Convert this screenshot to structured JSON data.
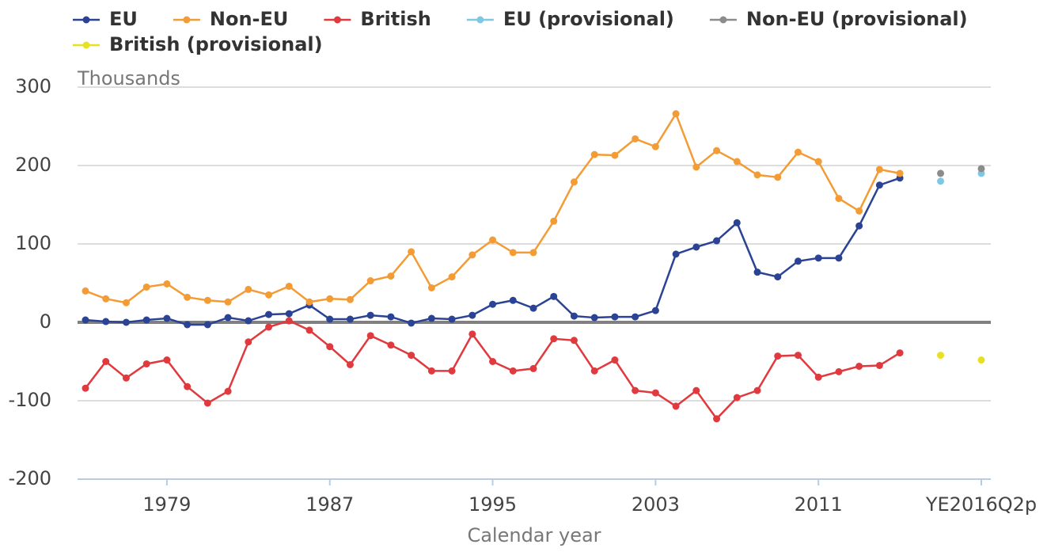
{
  "chart_data": {
    "type": "line",
    "y_label": "Thousands",
    "x_label": "Calendar year",
    "categories": [
      null,
      null,
      null,
      null,
      "1979",
      null,
      null,
      null,
      null,
      null,
      null,
      null,
      "1987",
      null,
      null,
      null,
      null,
      null,
      null,
      null,
      "1995",
      null,
      null,
      null,
      null,
      null,
      null,
      null,
      "2003",
      null,
      null,
      null,
      null,
      null,
      null,
      null,
      "2011",
      null,
      null,
      null,
      null,
      null,
      null,
      null,
      "YE2016Q2p"
    ],
    "series": [
      {
        "name": "EU",
        "color": "#2a4394",
        "values": [
          3,
          1,
          0,
          3,
          5,
          -3,
          -3,
          6,
          2,
          10,
          11,
          22,
          4,
          4,
          9,
          7,
          -1,
          5,
          4,
          9,
          23,
          28,
          18,
          33,
          8,
          6,
          7,
          7,
          15,
          87,
          96,
          104,
          127,
          64,
          58,
          78,
          82,
          82,
          123,
          175,
          184,
          null,
          null,
          null,
          null
        ]
      },
      {
        "name": "Non-EU",
        "color": "#f39c35",
        "values": [
          40,
          30,
          25,
          45,
          49,
          32,
          28,
          26,
          42,
          35,
          46,
          26,
          30,
          29,
          53,
          59,
          90,
          44,
          58,
          86,
          105,
          89,
          89,
          129,
          179,
          214,
          213,
          234,
          224,
          266,
          198,
          219,
          205,
          188,
          185,
          217,
          205,
          158,
          142,
          195,
          190,
          null,
          null,
          null,
          null
        ]
      },
      {
        "name": "British",
        "color": "#e0393e",
        "values": [
          -84,
          -50,
          -71,
          -53,
          -48,
          -82,
          -103,
          -88,
          -25,
          -6,
          2,
          -10,
          -31,
          -54,
          -17,
          -29,
          -42,
          -62,
          -62,
          -15,
          -50,
          -62,
          -59,
          -21,
          -23,
          -62,
          -48,
          -87,
          -90,
          -107,
          -87,
          -123,
          -96,
          -87,
          -43,
          -42,
          -70,
          -63,
          -56,
          -55,
          -39,
          null,
          null,
          null,
          null
        ]
      },
      {
        "name": "EU (provisional)",
        "color": "#7ec8e3",
        "values": [
          null,
          null,
          null,
          null,
          null,
          null,
          null,
          null,
          null,
          null,
          null,
          null,
          null,
          null,
          null,
          null,
          null,
          null,
          null,
          null,
          null,
          null,
          null,
          null,
          null,
          null,
          null,
          null,
          null,
          null,
          null,
          null,
          null,
          null,
          null,
          null,
          null,
          null,
          null,
          null,
          null,
          null,
          180,
          null,
          190
        ]
      },
      {
        "name": "Non-EU (provisional)",
        "color": "#8c8c8c",
        "values": [
          null,
          null,
          null,
          null,
          null,
          null,
          null,
          null,
          null,
          null,
          null,
          null,
          null,
          null,
          null,
          null,
          null,
          null,
          null,
          null,
          null,
          null,
          null,
          null,
          null,
          null,
          null,
          null,
          null,
          null,
          null,
          null,
          null,
          null,
          null,
          null,
          null,
          null,
          null,
          null,
          null,
          null,
          190,
          null,
          196
        ]
      },
      {
        "name": "British (provisional)",
        "color": "#e8e022",
        "values": [
          null,
          null,
          null,
          null,
          null,
          null,
          null,
          null,
          null,
          null,
          null,
          null,
          null,
          null,
          null,
          null,
          null,
          null,
          null,
          null,
          null,
          null,
          null,
          null,
          null,
          null,
          null,
          null,
          null,
          null,
          null,
          null,
          null,
          null,
          null,
          null,
          null,
          null,
          null,
          null,
          null,
          null,
          -42,
          null,
          -48
        ]
      }
    ],
    "ylim": [
      -200,
      300
    ],
    "yticks": [
      -200,
      -100,
      0,
      100,
      200,
      300
    ],
    "grid": true
  }
}
